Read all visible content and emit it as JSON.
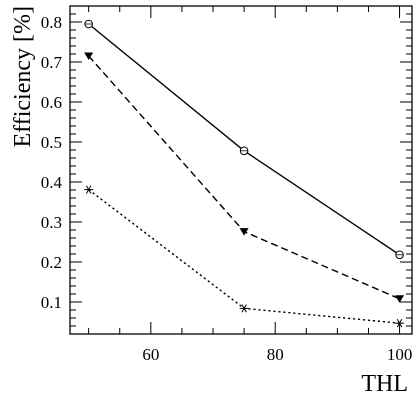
{
  "chart_data": {
    "type": "line",
    "xlabel": "THL",
    "ylabel": "Efficiency [%]",
    "xlim": [
      47,
      102
    ],
    "ylim": [
      0.02,
      0.84
    ],
    "x_ticks": [
      60,
      80,
      100
    ],
    "x_tick_labels": [
      "60",
      "80",
      "100"
    ],
    "y_ticks": [
      0.1,
      0.2,
      0.3,
      0.4,
      0.5,
      0.6,
      0.7,
      0.8
    ],
    "y_tick_labels": [
      "0.1",
      "0.2",
      "0.3",
      "0.4",
      "0.5",
      "0.6",
      "0.7",
      "0.8"
    ],
    "grid": false,
    "legend": "none",
    "x": [
      50,
      75,
      100
    ],
    "series": [
      {
        "values": [
          0.795,
          0.478,
          0.218
        ],
        "line_style": "solid",
        "marker": "open-circle",
        "color": "#000000"
      },
      {
        "values": [
          0.715,
          0.276,
          0.108
        ],
        "line_style": "dashed",
        "marker": "filled-triangle-down",
        "color": "#000000"
      },
      {
        "values": [
          0.381,
          0.084,
          0.047
        ],
        "line_style": "dotted",
        "marker": "asterisk",
        "color": "#000000"
      }
    ]
  }
}
